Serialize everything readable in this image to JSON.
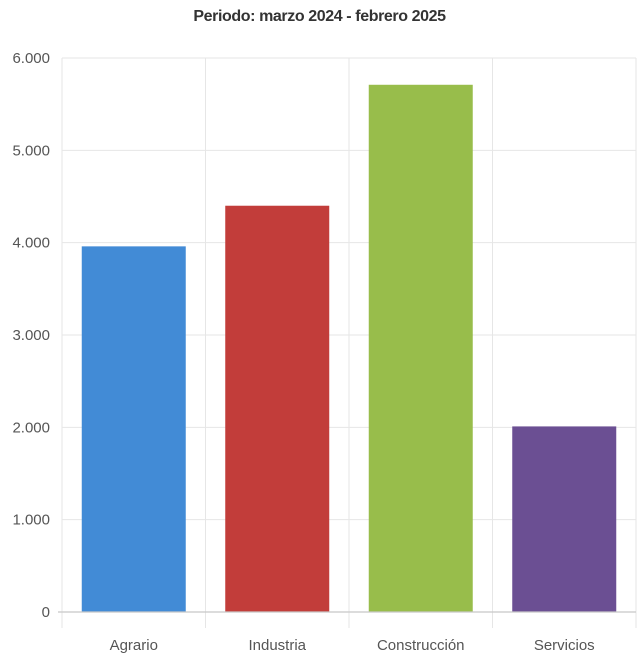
{
  "chart_data": {
    "type": "bar",
    "title": "Periodo: marzo 2024 - febrero 2025",
    "xlabel": "",
    "ylabel": "",
    "categories": [
      "Agrario",
      "Industria",
      "Construcción",
      "Servicios"
    ],
    "values": [
      3960,
      4400,
      5710,
      2010
    ],
    "colors": [
      "#428bd6",
      "#c23d3a",
      "#98bd4b",
      "#6b4f93"
    ],
    "ylim": [
      0,
      6000
    ],
    "yticks": [
      0,
      1000,
      2000,
      3000,
      4000,
      5000,
      6000
    ],
    "ytick_labels": [
      "0",
      "1.000",
      "2.000",
      "3.000",
      "4.000",
      "5.000",
      "6.000"
    ],
    "grid": true,
    "legend": "none"
  }
}
